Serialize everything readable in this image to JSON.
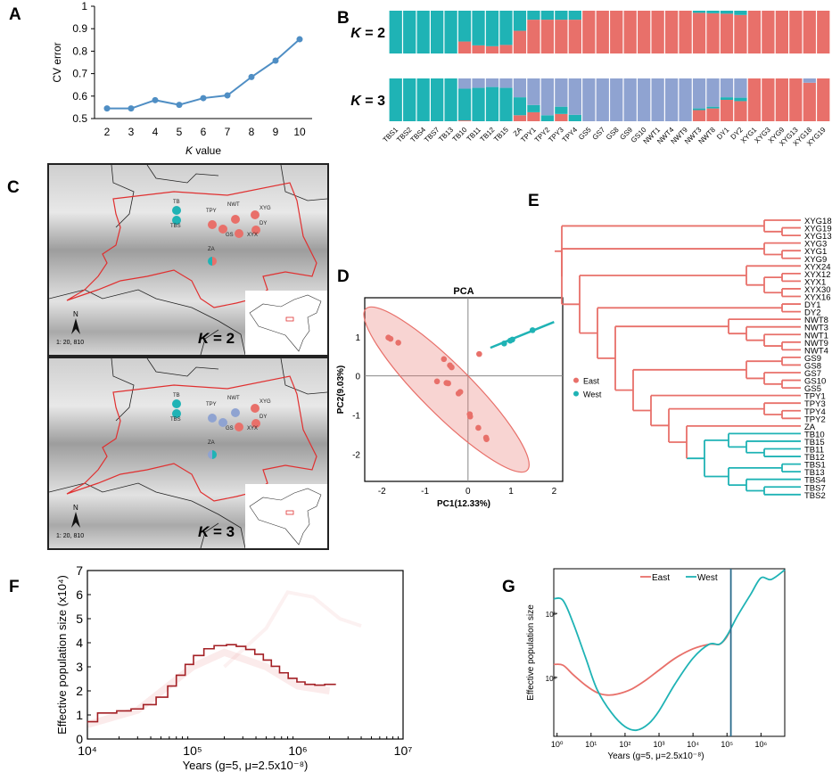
{
  "panels": {
    "A": "A",
    "B": "B",
    "C": "C",
    "D": "D",
    "E": "E",
    "F": "F",
    "G": "G"
  },
  "colors": {
    "east": "#e8706a",
    "west": "#1fb3b5",
    "cluster3": "#8fa3d1",
    "axis": "#000000",
    "line_A": "#4f8ec4",
    "psmc": "#a31f24",
    "map_border": "#e03030"
  },
  "chart_data": [
    {
      "id": "A",
      "type": "line",
      "title": "",
      "xlabel_italic": "K",
      "xlabel_rest": " value",
      "ylabel": "CV error",
      "x": [
        2,
        3,
        4,
        5,
        6,
        7,
        8,
        9,
        10
      ],
      "values": [
        0.545,
        0.545,
        0.582,
        0.561,
        0.591,
        0.603,
        0.685,
        0.758,
        0.853
      ],
      "ylim": [
        0.5,
        1.0
      ],
      "yticks": [
        "0.5",
        "0.6",
        "0.7",
        "0.8",
        "0.9",
        "1"
      ],
      "xticks": [
        "2",
        "3",
        "4",
        "5",
        "6",
        "7",
        "8",
        "9",
        "10"
      ],
      "grid": false
    },
    {
      "id": "B",
      "type": "bar",
      "subtype": "stacked-admixture",
      "categories": [
        "TBS1",
        "TBS2",
        "TBS4",
        "TBS7",
        "TB13",
        "TB10",
        "TB11",
        "TB12",
        "TB15",
        "ZA",
        "TPY1",
        "TPY2",
        "TPY3",
        "TPY4",
        "GS5",
        "GS7",
        "GS8",
        "GS9",
        "GS10",
        "NWT1",
        "NWT4",
        "NWT9",
        "NWT3",
        "NWT8",
        "DY1",
        "DY2",
        "XYG1",
        "XYG3",
        "XYG9",
        "XYG13",
        "XYG18",
        "XYG19"
      ],
      "rows": [
        {
          "label_italic": "K",
          "label_rest": " = 2",
          "series": [
            {
              "name": "East",
              "values": [
                0,
                0,
                0,
                0,
                0,
                0.28,
                0.19,
                0.17,
                0.2,
                0.53,
                0.79,
                0.79,
                0.79,
                0.79,
                1,
                1,
                1,
                1,
                1,
                1,
                1,
                1,
                0.95,
                0.94,
                0.93,
                0.9,
                1,
                1,
                1,
                1,
                1,
                1
              ]
            },
            {
              "name": "West",
              "values": [
                1,
                1,
                1,
                1,
                1,
                0.72,
                0.81,
                0.83,
                0.8,
                0.47,
                0.21,
                0.21,
                0.21,
                0.21,
                0,
                0,
                0,
                0,
                0,
                0,
                0,
                0,
                0.05,
                0.06,
                0.07,
                0.1,
                0,
                0,
                0,
                0,
                0,
                0
              ]
            }
          ]
        },
        {
          "label_italic": "K",
          "label_rest": " = 3",
          "series": [
            {
              "name": "East",
              "values": [
                0,
                0,
                0,
                0,
                0,
                0.02,
                0,
                0,
                0,
                0.14,
                0.21,
                0,
                0.17,
                0,
                0,
                0,
                0,
                0,
                0,
                0,
                0,
                0,
                0.26,
                0.3,
                0.5,
                0.47,
                1,
                1,
                1,
                1,
                0.9,
                1
              ]
            },
            {
              "name": "West",
              "values": [
                1,
                1,
                1,
                1,
                1,
                0.74,
                0.78,
                0.8,
                0.78,
                0.42,
                0.17,
                0.14,
                0.17,
                0.15,
                0,
                0,
                0,
                0,
                0,
                0,
                0,
                0,
                0.04,
                0.04,
                0.06,
                0.08,
                0,
                0,
                0,
                0,
                0,
                0
              ]
            },
            {
              "name": "Cluster3",
              "values": [
                0,
                0,
                0,
                0,
                0,
                0.24,
                0.22,
                0.2,
                0.22,
                0.44,
                0.62,
                0.86,
                0.66,
                0.85,
                1,
                1,
                1,
                1,
                1,
                1,
                1,
                1,
                0.7,
                0.66,
                0.44,
                0.45,
                0,
                0,
                0,
                0,
                0.1,
                0
              ]
            }
          ]
        }
      ]
    },
    {
      "id": "D",
      "type": "scatter",
      "title": "PCA",
      "xlabel": "PC1(12.33%)",
      "ylabel": "PC2(9.03%)",
      "xlim": [
        -2.4,
        2.2
      ],
      "ylim": [
        -2.7,
        2.0
      ],
      "xticks": [
        "-2",
        "-1",
        "0",
        "1",
        "2"
      ],
      "yticks": [
        "-2",
        "-1",
        "0",
        "1"
      ],
      "series": [
        {
          "name": "East",
          "points": [
            [
              -1.85,
              0.98
            ],
            [
              -1.8,
              0.95
            ],
            [
              -1.62,
              0.85
            ],
            [
              -0.56,
              0.43
            ],
            [
              -0.42,
              0.27
            ],
            [
              -0.38,
              0.22
            ],
            [
              -0.72,
              -0.14
            ],
            [
              -0.5,
              -0.18
            ],
            [
              -0.46,
              -0.19
            ],
            [
              -0.22,
              -0.45
            ],
            [
              -0.18,
              -0.41
            ],
            [
              0.04,
              -0.98
            ],
            [
              0.05,
              -1.04
            ],
            [
              0.24,
              -1.33
            ],
            [
              0.42,
              -1.58
            ],
            [
              0.43,
              -1.62
            ],
            [
              0.26,
              0.56
            ]
          ]
        },
        {
          "name": "West",
          "points": [
            [
              0.84,
              0.83
            ],
            [
              0.98,
              0.9
            ],
            [
              1.03,
              0.93
            ],
            [
              1.5,
              1.17
            ]
          ]
        }
      ],
      "legend": [
        "East",
        "West"
      ],
      "legend_position": "right"
    },
    {
      "id": "F",
      "type": "line",
      "subtype": "step-psmc",
      "xlabel": "Years (g=5,  μ=2.5x10⁻⁸)",
      "ylabel": "Effective population size (x10⁴)",
      "xscale": "log",
      "xlim": [
        10000,
        10000000
      ],
      "ylim": [
        0,
        7
      ],
      "xticks": [
        "10⁴",
        "10⁵",
        "10⁶",
        "10⁷"
      ],
      "yticks": [
        "0",
        "1",
        "2",
        "3",
        "4",
        "5",
        "6",
        "7"
      ],
      "steps": [
        [
          10000,
          0.72
        ],
        [
          12500,
          1.08
        ],
        [
          19000,
          1.17
        ],
        [
          26000,
          1.25
        ],
        [
          34000,
          1.43
        ],
        [
          45000,
          1.74
        ],
        [
          58000,
          2.2
        ],
        [
          70000,
          2.65
        ],
        [
          85000,
          3.1
        ],
        [
          102000,
          3.47
        ],
        [
          128000,
          3.75
        ],
        [
          160000,
          3.88
        ],
        [
          210000,
          3.92
        ],
        [
          260000,
          3.85
        ],
        [
          320000,
          3.72
        ],
        [
          390000,
          3.52
        ],
        [
          470000,
          3.28
        ],
        [
          560000,
          3.02
        ],
        [
          670000,
          2.75
        ],
        [
          810000,
          2.52
        ],
        [
          980000,
          2.37
        ],
        [
          1170000,
          2.27
        ],
        [
          1450000,
          2.24
        ],
        [
          1800000,
          2.27
        ],
        [
          2300000,
          2.27
        ]
      ]
    },
    {
      "id": "G",
      "type": "line",
      "xlabel": "Years (g=5, μ=2.5x10⁻⁸)",
      "ylabel": "Effective population size",
      "xscale": "log",
      "yscale": "log",
      "xlim": [
        0.8,
        5000000
      ],
      "ylim": [
        1200,
        500000
      ],
      "xticks": [
        "10⁰",
        "10¹",
        "10²",
        "10³",
        "10⁴",
        "10⁵",
        "10⁶"
      ],
      "yticks": [
        "10⁴",
        "10⁵"
      ],
      "vline_x": 130000,
      "legend": [
        "East",
        "West"
      ],
      "legend_position": "top",
      "series": [
        {
          "name": "East",
          "points": [
            [
              0.8,
              16000
            ],
            [
              1.5,
              15500
            ],
            [
              3,
              11000
            ],
            [
              7,
              7500
            ],
            [
              15,
              5800
            ],
            [
              30,
              5300
            ],
            [
              60,
              5500
            ],
            [
              150,
              6500
            ],
            [
              400,
              9000
            ],
            [
              1000,
              13000
            ],
            [
              3000,
              20000
            ],
            [
              10000,
              28000
            ],
            [
              30000,
              33000
            ],
            [
              60000,
              33000
            ],
            [
              90000,
              40000
            ],
            [
              120000,
              52000
            ]
          ]
        },
        {
          "name": "West",
          "points": [
            [
              0.8,
              170000
            ],
            [
              1.5,
              160000
            ],
            [
              3,
              70000
            ],
            [
              7,
              20000
            ],
            [
              15,
              6500
            ],
            [
              40,
              2800
            ],
            [
              100,
              1700
            ],
            [
              220,
              1500
            ],
            [
              500,
              1900
            ],
            [
              1000,
              3000
            ],
            [
              3000,
              8000
            ],
            [
              10000,
              20000
            ],
            [
              30000,
              33000
            ],
            [
              60000,
              33000
            ],
            [
              100000,
              45000
            ],
            [
              200000,
              90000
            ],
            [
              500000,
              200000
            ],
            [
              1000000,
              360000
            ],
            [
              2000000,
              340000
            ],
            [
              5000000,
              480000
            ]
          ]
        }
      ]
    }
  ],
  "tree": {
    "leaves": [
      "XYG18",
      "XYG19",
      "XYG13",
      "XYG3",
      "XYG1",
      "XYG9",
      "XYX24",
      "XYX12",
      "XYX1",
      "XYX30",
      "XYX16",
      "DY1",
      "DY2",
      "NWT8",
      "NWT3",
      "NWT1",
      "NWT9",
      "NWT4",
      "GS9",
      "GS8",
      "GS7",
      "GS10",
      "GS5",
      "TPY1",
      "TPY3",
      "TPY4",
      "TPY2",
      "ZA",
      "TB10",
      "TB15",
      "TB11",
      "TB12",
      "TBS1",
      "TB13",
      "TBS4",
      "TBS7",
      "TBS2"
    ],
    "west_leaves_from_index": 28
  },
  "maps": [
    {
      "k_italic": "K",
      "k_rest": " = 2",
      "north": "N",
      "scale": "1: 20, 810",
      "sites": [
        {
          "name": "TB",
          "mix": [
            "west"
          ]
        },
        {
          "name": "TBS",
          "mix": [
            "west"
          ]
        },
        {
          "name": "TPY",
          "mix": [
            "east"
          ]
        },
        {
          "name": "NWT",
          "mix": [
            "east"
          ]
        },
        {
          "name": "XYG",
          "mix": [
            "east"
          ]
        },
        {
          "name": "GS",
          "mix": [
            "east"
          ]
        },
        {
          "name": "DY",
          "mix": [
            "east"
          ]
        },
        {
          "name": "XYX",
          "mix": [
            "east"
          ]
        },
        {
          "name": "ZA",
          "mix": [
            "west",
            "east"
          ]
        }
      ]
    },
    {
      "k_italic": "K",
      "k_rest": " = 3",
      "north": "N",
      "scale": "1: 20, 810",
      "sites": [
        {
          "name": "TB",
          "mix": [
            "west"
          ]
        },
        {
          "name": "TBS",
          "mix": [
            "west"
          ]
        },
        {
          "name": "TPY",
          "mix": [
            "cluster3"
          ]
        },
        {
          "name": "NWT",
          "mix": [
            "cluster3"
          ]
        },
        {
          "name": "XYG",
          "mix": [
            "east"
          ]
        },
        {
          "name": "GS",
          "mix": [
            "cluster3"
          ]
        },
        {
          "name": "DY",
          "mix": [
            "east"
          ]
        },
        {
          "name": "XYX",
          "mix": [
            "east"
          ]
        },
        {
          "name": "ZA",
          "mix": [
            "cluster3",
            "west"
          ]
        }
      ]
    }
  ]
}
